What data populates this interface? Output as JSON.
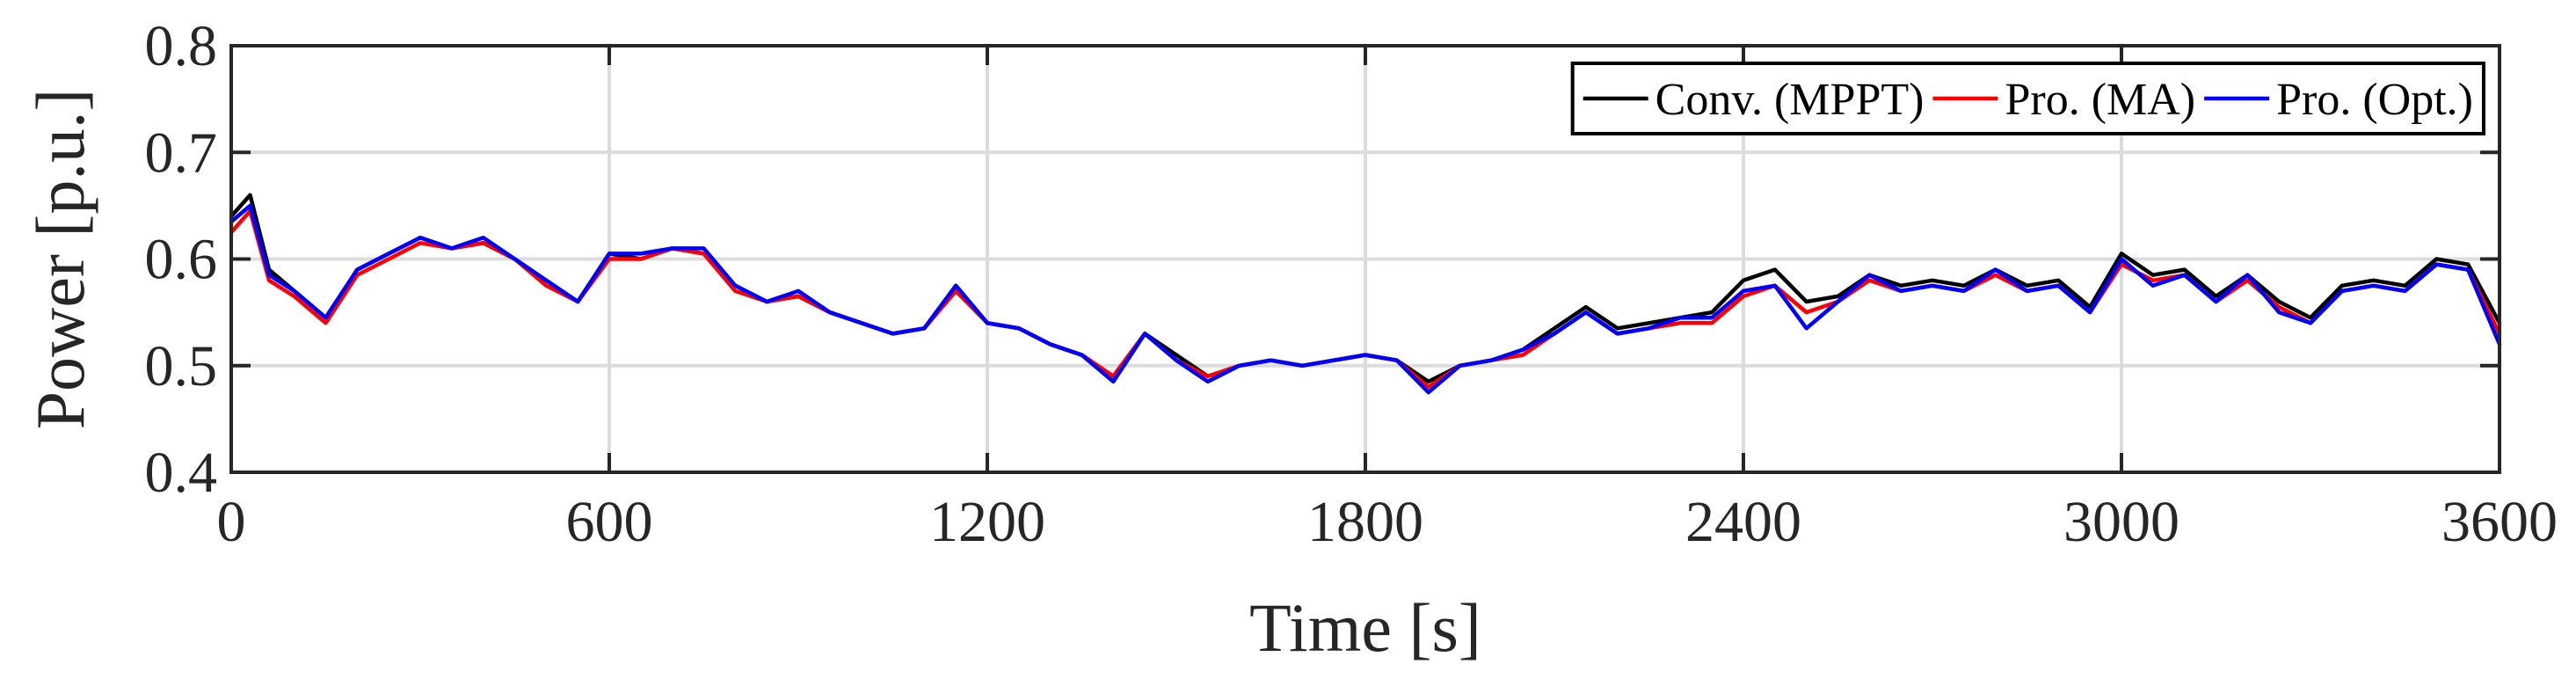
{
  "chart_data": {
    "type": "line",
    "title": "",
    "xlabel": "Time [s]",
    "ylabel": "Power [p.u.]",
    "xlim": [
      0,
      3600
    ],
    "ylim": [
      0.4,
      0.8
    ],
    "xticks": [
      0,
      600,
      1200,
      1800,
      2400,
      3000,
      3600
    ],
    "xtick_labels": [
      "0",
      "600",
      "1200",
      "1800",
      "2400",
      "3000",
      "3600"
    ],
    "yticks": [
      0.4,
      0.5,
      0.6,
      0.7,
      0.8
    ],
    "ytick_labels": [
      "0.4",
      "0.5",
      "0.6",
      "0.7",
      "0.8"
    ],
    "grid": true,
    "legend": {
      "placement": "top-right",
      "orientation": "horizontal"
    },
    "x": [
      0,
      30,
      60,
      100,
      150,
      200,
      250,
      300,
      350,
      400,
      450,
      500,
      550,
      600,
      650,
      700,
      750,
      800,
      850,
      900,
      950,
      1000,
      1050,
      1100,
      1150,
      1200,
      1250,
      1300,
      1350,
      1400,
      1450,
      1500,
      1550,
      1600,
      1650,
      1700,
      1750,
      1800,
      1850,
      1900,
      1950,
      2000,
      2050,
      2100,
      2150,
      2200,
      2250,
      2300,
      2350,
      2400,
      2450,
      2500,
      2550,
      2600,
      2650,
      2700,
      2750,
      2800,
      2850,
      2900,
      2950,
      3000,
      3050,
      3100,
      3150,
      3200,
      3250,
      3300,
      3350,
      3400,
      3450,
      3500,
      3550,
      3600
    ],
    "series": [
      {
        "name": "Conv. (MPPT)",
        "color": "#000000",
        "values": [
          0.64,
          0.66,
          0.59,
          0.57,
          0.545,
          0.59,
          0.605,
          0.62,
          0.61,
          0.615,
          0.6,
          0.58,
          0.56,
          0.605,
          0.6,
          0.61,
          0.605,
          0.575,
          0.56,
          0.565,
          0.55,
          0.54,
          0.53,
          0.535,
          0.575,
          0.54,
          0.535,
          0.52,
          0.51,
          0.49,
          0.53,
          0.51,
          0.49,
          0.5,
          0.505,
          0.5,
          0.505,
          0.51,
          0.505,
          0.485,
          0.5,
          0.505,
          0.515,
          0.535,
          0.555,
          0.535,
          0.54,
          0.545,
          0.55,
          0.58,
          0.59,
          0.56,
          0.565,
          0.585,
          0.575,
          0.58,
          0.575,
          0.59,
          0.575,
          0.58,
          0.555,
          0.605,
          0.585,
          0.59,
          0.565,
          0.585,
          0.56,
          0.545,
          0.575,
          0.58,
          0.575,
          0.6,
          0.595,
          0.54
        ]
      },
      {
        "name": "Pro. (MA)",
        "color": "#ff0000",
        "values": [
          0.625,
          0.645,
          0.58,
          0.565,
          0.54,
          0.585,
          0.6,
          0.615,
          0.61,
          0.615,
          0.6,
          0.575,
          0.56,
          0.6,
          0.6,
          0.61,
          0.605,
          0.57,
          0.56,
          0.565,
          0.55,
          0.54,
          0.53,
          0.535,
          0.57,
          0.54,
          0.535,
          0.52,
          0.51,
          0.49,
          0.53,
          0.505,
          0.49,
          0.5,
          0.505,
          0.5,
          0.505,
          0.51,
          0.505,
          0.48,
          0.5,
          0.505,
          0.51,
          0.53,
          0.55,
          0.53,
          0.535,
          0.54,
          0.54,
          0.565,
          0.575,
          0.55,
          0.56,
          0.58,
          0.57,
          0.575,
          0.57,
          0.585,
          0.57,
          0.575,
          0.55,
          0.595,
          0.58,
          0.585,
          0.56,
          0.58,
          0.555,
          0.54,
          0.57,
          0.575,
          0.57,
          0.595,
          0.59,
          0.53
        ]
      },
      {
        "name": "Pro. (Opt.)",
        "color": "#0000ff",
        "values": [
          0.635,
          0.65,
          0.585,
          0.57,
          0.545,
          0.59,
          0.605,
          0.62,
          0.61,
          0.62,
          0.6,
          0.58,
          0.56,
          0.605,
          0.605,
          0.61,
          0.61,
          0.575,
          0.56,
          0.57,
          0.55,
          0.54,
          0.53,
          0.535,
          0.575,
          0.54,
          0.535,
          0.52,
          0.51,
          0.485,
          0.53,
          0.505,
          0.485,
          0.5,
          0.505,
          0.5,
          0.505,
          0.51,
          0.505,
          0.475,
          0.5,
          0.505,
          0.515,
          0.53,
          0.55,
          0.53,
          0.535,
          0.545,
          0.545,
          0.57,
          0.575,
          0.535,
          0.56,
          0.585,
          0.57,
          0.575,
          0.57,
          0.59,
          0.57,
          0.575,
          0.55,
          0.6,
          0.575,
          0.585,
          0.56,
          0.585,
          0.55,
          0.54,
          0.57,
          0.575,
          0.57,
          0.595,
          0.59,
          0.52
        ]
      }
    ]
  }
}
